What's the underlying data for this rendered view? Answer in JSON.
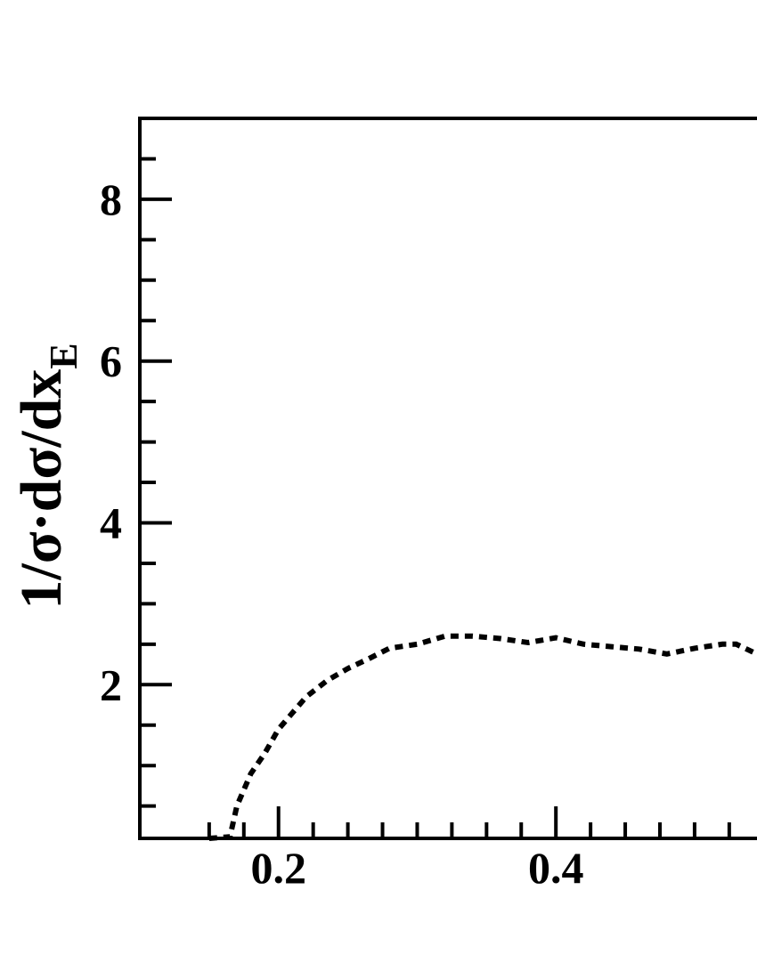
{
  "chart_data": {
    "type": "line",
    "y_label": "1/σ·dσ/dx",
    "y_label_subscript": "E",
    "xlim": [
      0.1,
      0.545
    ],
    "ylim": [
      0.1,
      9
    ],
    "xticks": [
      0.2,
      0.4
    ],
    "yticks": [
      2,
      4,
      6,
      8
    ],
    "x_minor_ticks": [
      0.15,
      0.175,
      0.225,
      0.25,
      0.275,
      0.3,
      0.325,
      0.35,
      0.375,
      0.425,
      0.45,
      0.475,
      0.5,
      0.525
    ],
    "y_minor_ticks": [
      0.5,
      1,
      1.5,
      2.5,
      3,
      3.5,
      4.5,
      5,
      5.5,
      6.5,
      7,
      7.5,
      8.5
    ],
    "series": [
      {
        "color": "#000000",
        "dash": true,
        "x": [
          0.15,
          0.165,
          0.17,
          0.18,
          0.19,
          0.2,
          0.21,
          0.22,
          0.235,
          0.25,
          0.265,
          0.28,
          0.3,
          0.32,
          0.34,
          0.36,
          0.38,
          0.4,
          0.42,
          0.44,
          0.46,
          0.48,
          0.5,
          0.52,
          0.53,
          0.545
        ],
        "values": [
          0.1,
          0.12,
          0.5,
          0.9,
          1.15,
          1.45,
          1.65,
          1.85,
          2.05,
          2.2,
          2.32,
          2.45,
          2.5,
          2.6,
          2.6,
          2.57,
          2.52,
          2.58,
          2.5,
          2.47,
          2.44,
          2.38,
          2.45,
          2.5,
          2.5,
          2.38
        ]
      }
    ]
  }
}
